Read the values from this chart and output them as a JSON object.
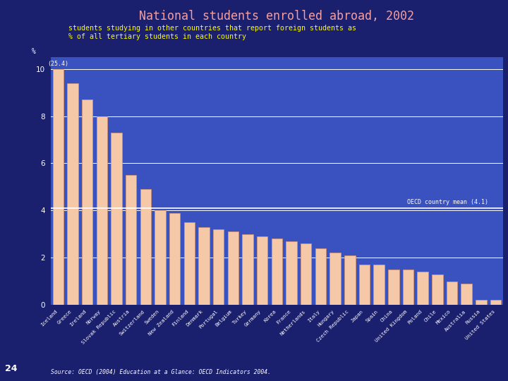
{
  "title": "National students enrolled abroad, 2002",
  "subtitle": "students studying in other countries that report foreign students as\n% of all tertiary students in each country",
  "ylabel": "%",
  "oecd_mean": 4.1,
  "oecd_mean_label": "OECD country mean (4.1)",
  "annotation": "(25.4)",
  "source": "Source: OECD (2004) Education at a Glance: OECD Indicators 2004.",
  "page_number": "24",
  "fig_bg_color": "#1a1f6e",
  "sidebar_color": "#12175a",
  "chart_bg_color": "#3a52c0",
  "bar_color": "#f5c9a8",
  "bar_edge_color": "#d4956a",
  "grid_color": "#ffffff",
  "text_color": "#ffffff",
  "title_color": "#f4a0a0",
  "subtitle_color": "#ffff00",
  "mean_line_color": "#ffffff",
  "source_color": "#ffffff",
  "ylim": [
    0,
    10.5
  ],
  "yticks": [
    0,
    2,
    4,
    6,
    8,
    10
  ],
  "categories": [
    "Iceland",
    "Greece",
    "Ireland",
    "Norway",
    "Slovak Republic",
    "Austria",
    "Switzerland",
    "Sweden",
    "New Zealand",
    "Finland",
    "Denmark",
    "Portugal",
    "Belgium",
    "Turkey",
    "Germany",
    "Korea",
    "France",
    "Netherlands",
    "Italy",
    "Hungary",
    "Czech Republic",
    "Japan",
    "Spain",
    "China",
    "United Kingdom",
    "Poland",
    "Chile",
    "Mexico",
    "Australia",
    "Russia",
    "United States"
  ],
  "values": [
    10.0,
    9.4,
    8.7,
    8.0,
    7.3,
    5.5,
    4.9,
    4.0,
    3.9,
    3.5,
    3.3,
    3.2,
    3.1,
    3.0,
    2.9,
    2.8,
    2.7,
    2.6,
    2.4,
    2.2,
    2.1,
    1.7,
    1.7,
    1.5,
    1.5,
    1.4,
    1.3,
    1.0,
    0.9,
    0.2,
    0.2
  ]
}
